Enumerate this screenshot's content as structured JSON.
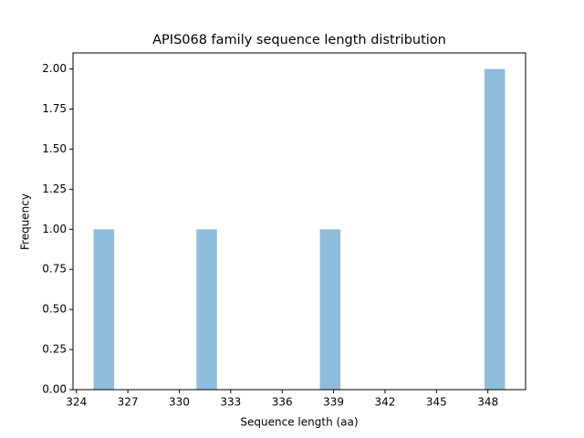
{
  "chart_data": {
    "type": "histogram",
    "title": "APIS068 family sequence length distribution",
    "x_label": "Sequence length (aa)",
    "y_label": "Frequency",
    "bins": [
      325,
      326.2,
      327.4,
      328.6,
      329.8,
      331,
      332.2,
      333.4,
      334.6,
      335.8,
      337,
      338.2,
      339.4,
      340.6,
      341.8,
      343,
      344.2,
      345.4,
      346.6,
      347.8,
      349
    ],
    "values": [
      1,
      0,
      0,
      0,
      0,
      1,
      0,
      0,
      0,
      0,
      0,
      1,
      0,
      0,
      0,
      0,
      0,
      0,
      0,
      2
    ],
    "color": "#8fbcdb",
    "xlim": [
      323.8,
      350.2
    ],
    "xticks": [
      324,
      327,
      330,
      333,
      336,
      339,
      342,
      345,
      348
    ],
    "ylim": [
      0,
      2.1
    ],
    "yticks": [
      {
        "value": 0,
        "label": "0.00"
      },
      {
        "value": 0.25,
        "label": "0.25"
      },
      {
        "value": 0.5,
        "label": "0.50"
      },
      {
        "value": 0.75,
        "label": "0.75"
      },
      {
        "value": 1,
        "label": "1.00"
      },
      {
        "value": 1.25,
        "label": "1.25"
      },
      {
        "value": 1.5,
        "label": "1.50"
      },
      {
        "value": 1.75,
        "label": "1.75"
      },
      {
        "value": 2,
        "label": "2.00"
      }
    ],
    "grid": false
  }
}
